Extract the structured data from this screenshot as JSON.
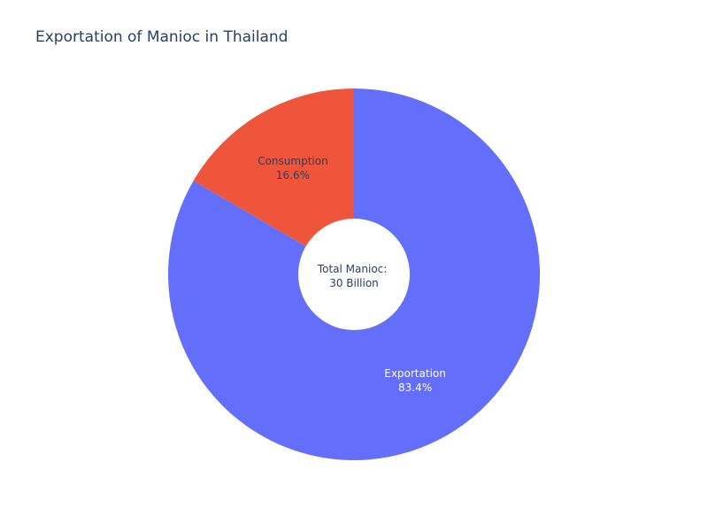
{
  "chart_data": {
    "type": "pie",
    "title": "Exportation of Manioc in Thailand",
    "hole": true,
    "center_text": [
      "Total Manioc:",
      "30 Billion"
    ],
    "slices": [
      {
        "label": "Exportation",
        "percent_label": "83.4%",
        "value": 83.4,
        "color": "#636efa",
        "text_color": "#ffffff"
      },
      {
        "label": "Consumption",
        "percent_label": "16.6%",
        "value": 16.6,
        "color": "#ef553b",
        "text_color": "#2a3f5f"
      }
    ]
  }
}
